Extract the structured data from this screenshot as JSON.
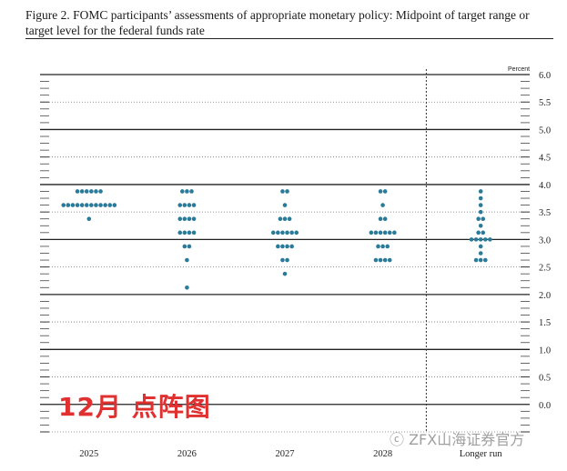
{
  "figure": {
    "title": "Figure 2. FOMC participants’ assessments of appropriate monetary policy: Midpoint of target range or target level for the federal funds rate"
  },
  "overlay_label": "12月 点阵图",
  "watermark": "ⓒ ZFX山海证券官方",
  "chart_data": {
    "type": "scatter",
    "unit_label": "Percent",
    "ylim": [
      -0.5,
      6.0
    ],
    "yticks": [
      {
        "value": 6.0,
        "label": "6.0"
      },
      {
        "value": 5.5,
        "label": "5.5"
      },
      {
        "value": 5.0,
        "label": "5.0"
      },
      {
        "value": 4.5,
        "label": "4.5"
      },
      {
        "value": 4.0,
        "label": "4.0"
      },
      {
        "value": 3.5,
        "label": "3.5"
      },
      {
        "value": 3.0,
        "label": "3.0"
      },
      {
        "value": 2.5,
        "label": "2.5"
      },
      {
        "value": 2.0,
        "label": "2.0"
      },
      {
        "value": 1.5,
        "label": "1.5"
      },
      {
        "value": 1.0,
        "label": "1.0"
      },
      {
        "value": 0.5,
        "label": "0.5"
      },
      {
        "value": 0.0,
        "label": "0.0"
      }
    ],
    "grid": true,
    "categories": [
      "2025",
      "2026",
      "2027",
      "2028",
      "Longer run"
    ],
    "dot_color": "#2a7a9a",
    "dots": [
      {
        "category": "2025",
        "levels": [
          {
            "value": 3.875,
            "count": 6
          },
          {
            "value": 3.625,
            "count": 12
          },
          {
            "value": 3.375,
            "count": 1
          }
        ]
      },
      {
        "category": "2026",
        "levels": [
          {
            "value": 3.875,
            "count": 3
          },
          {
            "value": 3.625,
            "count": 4
          },
          {
            "value": 3.375,
            "count": 4
          },
          {
            "value": 3.125,
            "count": 4
          },
          {
            "value": 2.875,
            "count": 2
          },
          {
            "value": 2.625,
            "count": 1
          },
          {
            "value": 2.125,
            "count": 1
          }
        ]
      },
      {
        "category": "2027",
        "levels": [
          {
            "value": 3.875,
            "count": 2
          },
          {
            "value": 3.625,
            "count": 1
          },
          {
            "value": 3.375,
            "count": 3
          },
          {
            "value": 3.125,
            "count": 6
          },
          {
            "value": 2.875,
            "count": 4
          },
          {
            "value": 2.625,
            "count": 2
          },
          {
            "value": 2.375,
            "count": 1
          }
        ]
      },
      {
        "category": "2028",
        "levels": [
          {
            "value": 3.875,
            "count": 2
          },
          {
            "value": 3.625,
            "count": 1
          },
          {
            "value": 3.375,
            "count": 2
          },
          {
            "value": 3.125,
            "count": 6
          },
          {
            "value": 2.875,
            "count": 3
          },
          {
            "value": 2.625,
            "count": 4
          }
        ]
      },
      {
        "category": "Longer run",
        "levels": [
          {
            "value": 3.875,
            "count": 1
          },
          {
            "value": 3.75,
            "count": 1
          },
          {
            "value": 3.625,
            "count": 1
          },
          {
            "value": 3.5,
            "count": 1
          },
          {
            "value": 3.375,
            "count": 2
          },
          {
            "value": 3.25,
            "count": 1
          },
          {
            "value": 3.125,
            "count": 2
          },
          {
            "value": 3.0,
            "count": 5
          },
          {
            "value": 2.875,
            "count": 1
          },
          {
            "value": 2.75,
            "count": 1
          },
          {
            "value": 2.625,
            "count": 3
          }
        ]
      }
    ]
  }
}
